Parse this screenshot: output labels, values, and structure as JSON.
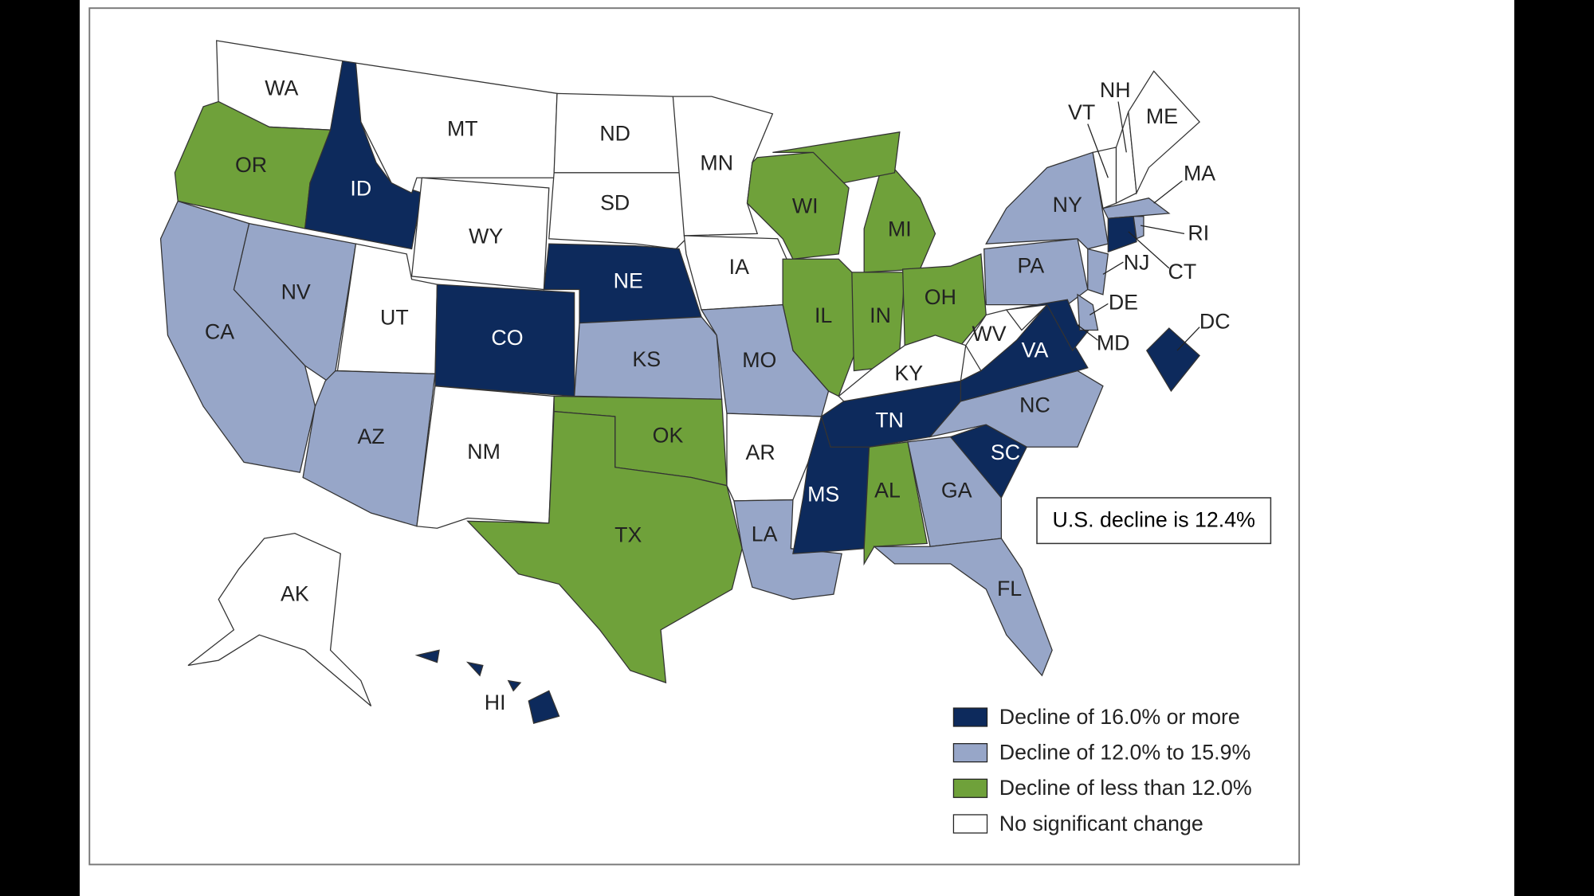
{
  "colors": {
    "decline_16_or_more": "#0d2a5c",
    "decline_12_to_15_9": "#97a6c8",
    "decline_less_12": "#6fa13a",
    "no_significant_change": "#ffffff"
  },
  "annotation": "U.S. decline is 12.4%",
  "legend": [
    {
      "key": "decline_16_or_more",
      "label": "Decline of 16.0% or more"
    },
    {
      "key": "decline_12_to_15_9",
      "label": "Decline of 12.0% to 15.9%"
    },
    {
      "key": "decline_less_12",
      "label": "Decline of less than 12.0%"
    },
    {
      "key": "no_significant_change",
      "label": "No significant change"
    }
  ],
  "states": {
    "WA": "no_significant_change",
    "OR": "decline_less_12",
    "ID": "decline_16_or_more",
    "MT": "no_significant_change",
    "ND": "no_significant_change",
    "SD": "no_significant_change",
    "WY": "no_significant_change",
    "NE": "decline_16_or_more",
    "MN": "no_significant_change",
    "IA": "no_significant_change",
    "WI": "decline_less_12",
    "MI": "decline_less_12",
    "IL": "decline_less_12",
    "IN": "decline_less_12",
    "OH": "decline_less_12",
    "NV": "decline_12_to_15_9",
    "CA": "decline_12_to_15_9",
    "UT": "no_significant_change",
    "CO": "decline_16_or_more",
    "AZ": "decline_12_to_15_9",
    "NM": "no_significant_change",
    "KS": "decline_12_to_15_9",
    "MO": "decline_12_to_15_9",
    "OK": "decline_less_12",
    "TX": "decline_less_12",
    "AR": "no_significant_change",
    "LA": "decline_12_to_15_9",
    "MS": "decline_16_or_more",
    "AL": "decline_less_12",
    "TN": "decline_16_or_more",
    "KY": "no_significant_change",
    "GA": "decline_12_to_15_9",
    "FL": "decline_12_to_15_9",
    "SC": "decline_16_or_more",
    "NC": "decline_12_to_15_9",
    "VA": "decline_16_or_more",
    "WV": "no_significant_change",
    "PA": "decline_12_to_15_9",
    "NY": "decline_12_to_15_9",
    "MD": "decline_16_or_more",
    "DE": "decline_12_to_15_9",
    "NJ": "decline_12_to_15_9",
    "VT": "no_significant_change",
    "NH": "no_significant_change",
    "ME": "no_significant_change",
    "MA": "decline_12_to_15_9",
    "CT": "decline_16_or_more",
    "RI": "decline_12_to_15_9",
    "DC": "decline_16_or_more",
    "AK": "no_significant_change",
    "HI": "decline_16_or_more"
  }
}
